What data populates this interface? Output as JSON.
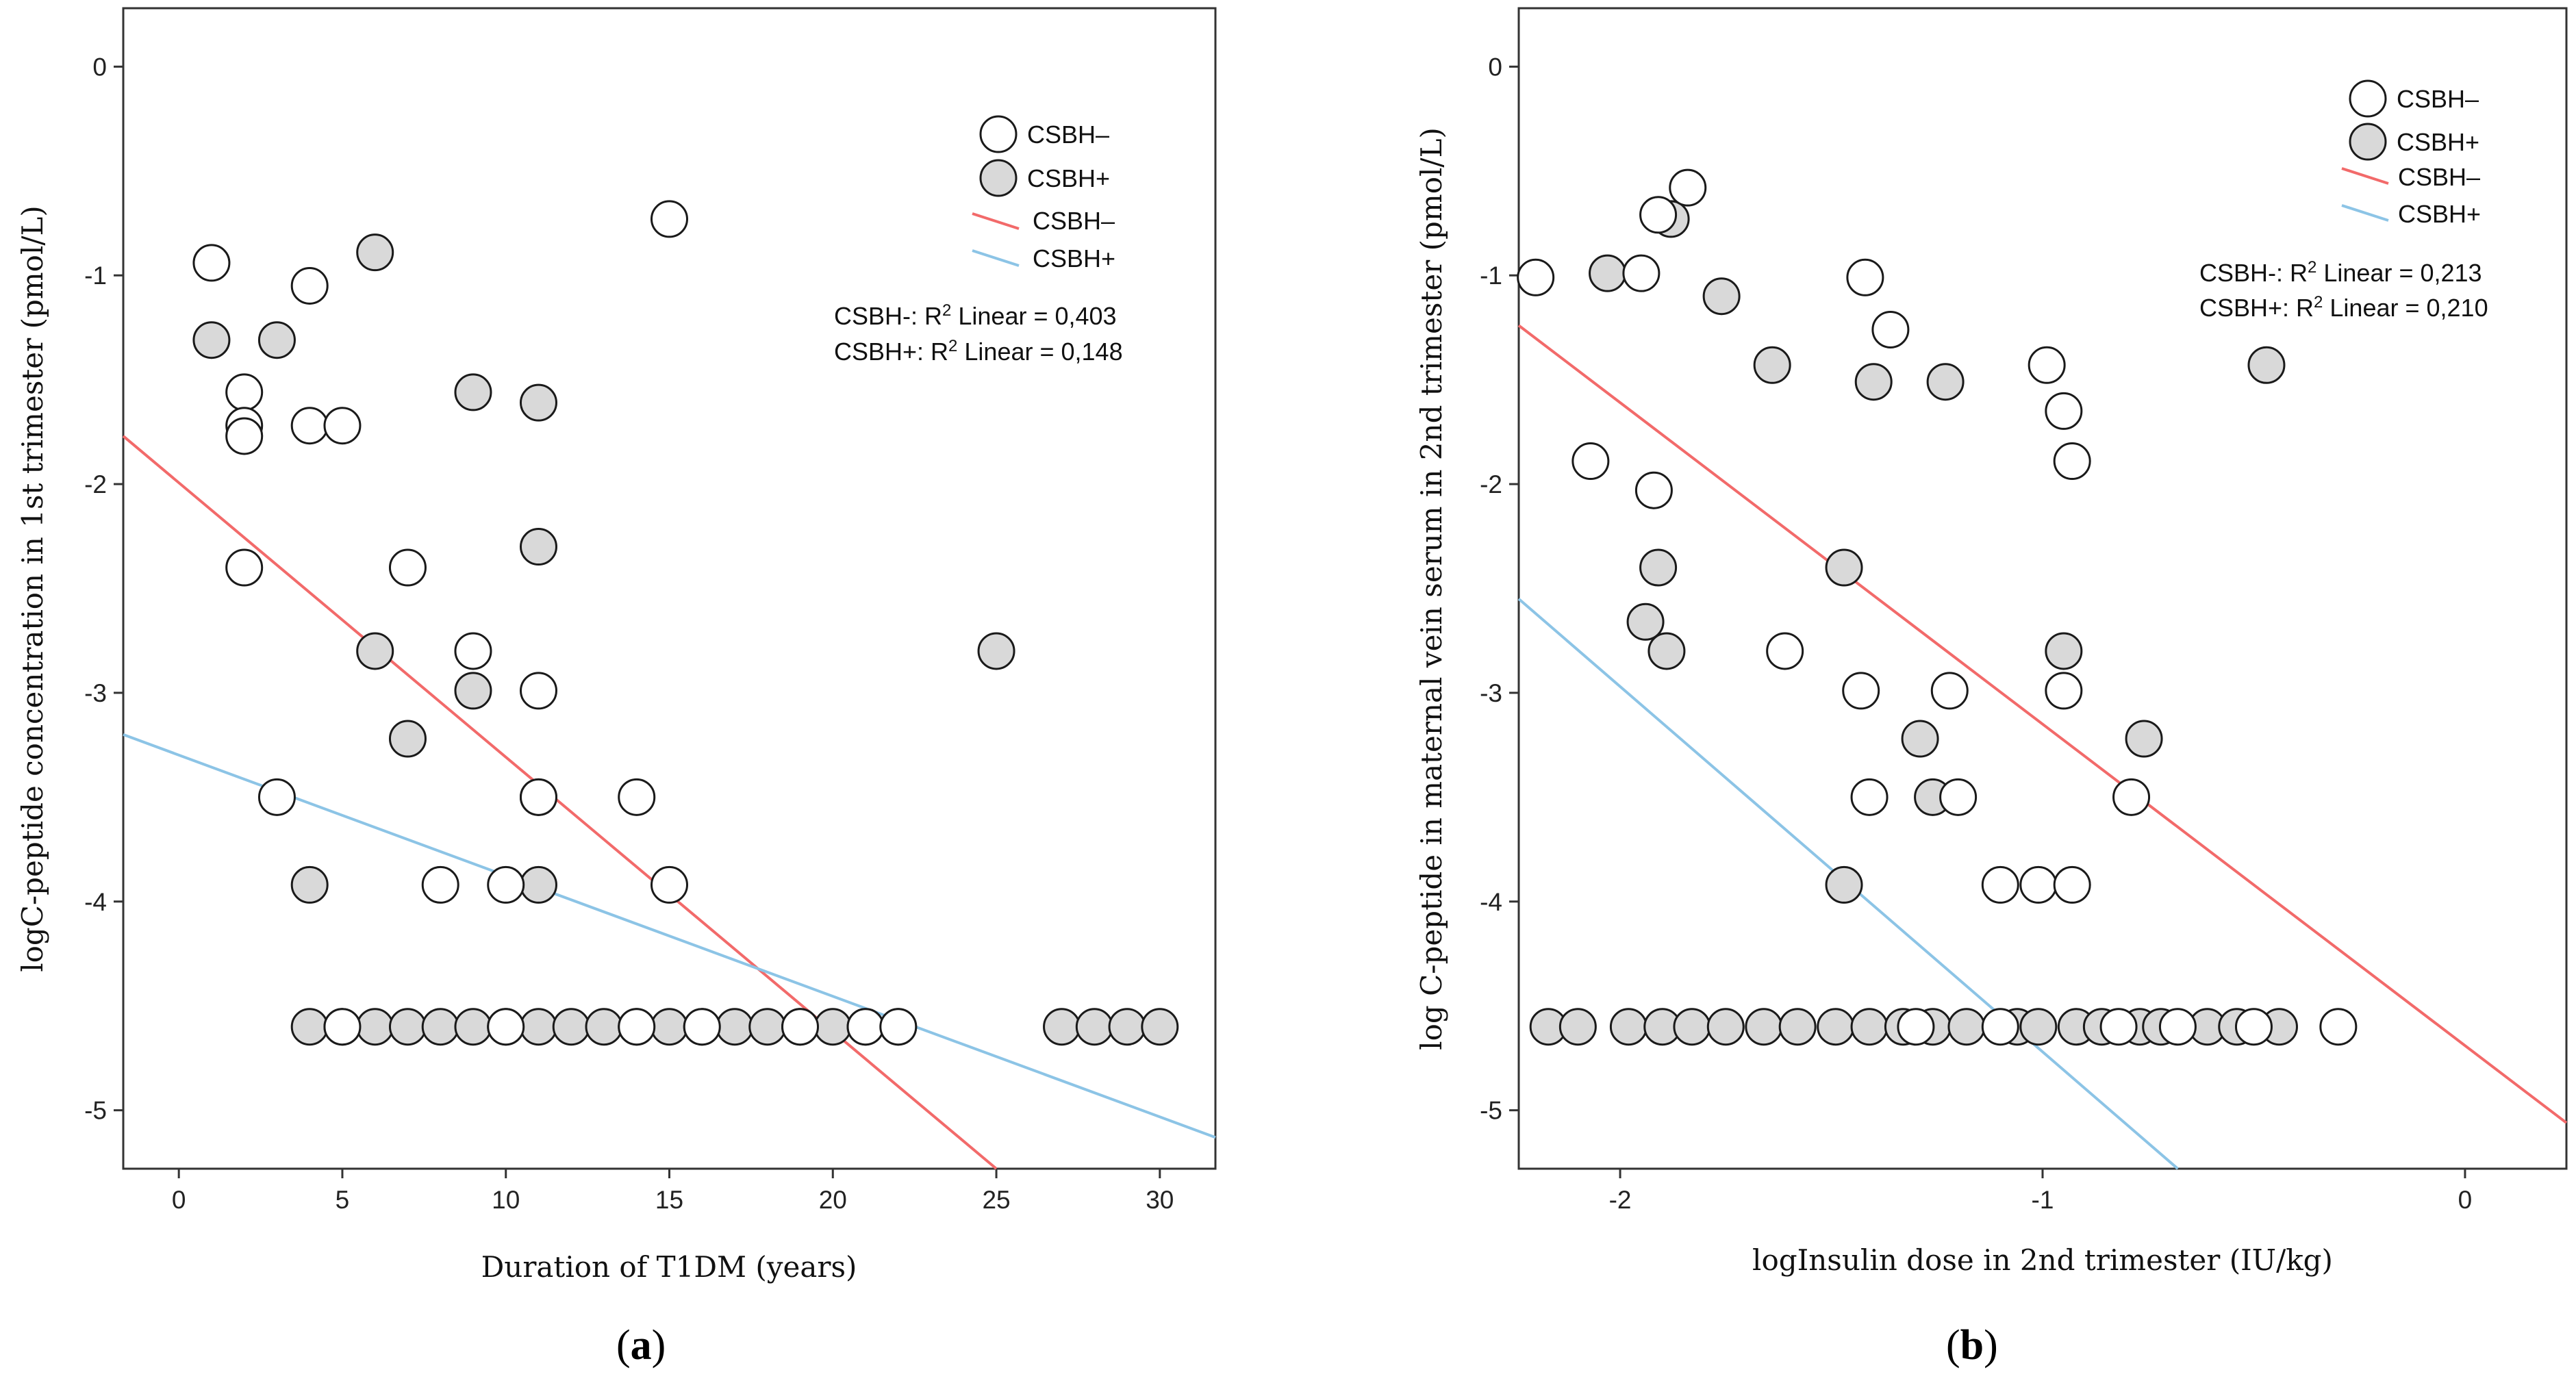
{
  "colors": {
    "neg_line": "#f26a6a",
    "pos_line": "#8cc4e6",
    "neg_fill": "#ffffff",
    "pos_fill": "#d9d9d9",
    "stroke": "#1a1a1a"
  },
  "chart_data": [
    {
      "type": "scatter",
      "panel_label_open": "(",
      "panel_label": "a",
      "panel_label_close": ")",
      "xlabel": "Duration of T1DM (years)",
      "ylabel": "logC-peptide concentration in 1st trimester (pmol/L)",
      "xlim": [
        -1.7,
        31.7
      ],
      "ylim": [
        -5.28,
        0.28
      ],
      "xticks": [
        0,
        5,
        10,
        15,
        20,
        25,
        30
      ],
      "xtick_labels": [
        "0",
        "5",
        "10",
        "15",
        "20",
        "25",
        "30"
      ],
      "yticks": [
        0,
        -1,
        -2,
        -3,
        -4,
        -5
      ],
      "ytick_labels": [
        "0",
        "-1",
        "-2",
        "-3",
        "-4",
        "-5"
      ],
      "legend": {
        "items": [
          {
            "kind": "marker",
            "series": "neg",
            "label": "CSBH–"
          },
          {
            "kind": "marker",
            "series": "pos",
            "label": "CSBH+"
          },
          {
            "kind": "line",
            "series": "neg",
            "label": "CSBH–"
          },
          {
            "kind": "line",
            "series": "pos",
            "label": "CSBH+"
          }
        ],
        "r2_lines": [
          {
            "prefix": "CSBH-: R",
            "sup": "2",
            "suffix": " Linear = 0,403"
          },
          {
            "prefix": "CSBH+: R",
            "sup": "2",
            "suffix": " Linear = 0,148"
          }
        ]
      },
      "fit_lines": [
        {
          "series": "neg",
          "x": [
            -1.7,
            25.0
          ],
          "y": [
            -1.77,
            -5.28
          ]
        },
        {
          "series": "pos",
          "x": [
            -1.7,
            31.7
          ],
          "y": [
            -3.2,
            -5.13
          ]
        }
      ],
      "series": [
        {
          "name": "CSBH–",
          "key": "neg",
          "points": [
            [
              1,
              -0.94
            ],
            [
              4,
              -1.05
            ],
            [
              15,
              -0.73
            ],
            [
              2,
              -1.56
            ],
            [
              2,
              -1.72
            ],
            [
              2,
              -1.77
            ],
            [
              4,
              -1.72
            ],
            [
              5,
              -1.72
            ],
            [
              2,
              -2.4
            ],
            [
              7,
              -2.4
            ],
            [
              11,
              -2.99
            ],
            [
              9,
              -2.8
            ],
            [
              3,
              -3.5
            ],
            [
              11,
              -3.5
            ],
            [
              14,
              -3.5
            ],
            [
              8,
              -3.92
            ],
            [
              10,
              -3.92
            ],
            [
              15,
              -3.92
            ],
            [
              5,
              -4.6
            ],
            [
              10,
              -4.6
            ],
            [
              14,
              -4.6
            ],
            [
              16,
              -4.6
            ],
            [
              19,
              -4.6
            ],
            [
              21,
              -4.6
            ],
            [
              22,
              -4.6
            ]
          ]
        },
        {
          "name": "CSBH+",
          "key": "pos",
          "points": [
            [
              1,
              -1.31
            ],
            [
              3,
              -1.31
            ],
            [
              6,
              -0.89
            ],
            [
              9,
              -1.56
            ],
            [
              11,
              -1.61
            ],
            [
              11,
              -2.3
            ],
            [
              6,
              -2.8
            ],
            [
              9,
              -2.99
            ],
            [
              7,
              -3.22
            ],
            [
              11,
              -3.5
            ],
            [
              4,
              -3.92
            ],
            [
              11,
              -3.92
            ],
            [
              25,
              -2.8
            ],
            [
              4,
              -4.6
            ],
            [
              5,
              -4.6
            ],
            [
              6,
              -4.6
            ],
            [
              7,
              -4.6
            ],
            [
              8,
              -4.6
            ],
            [
              9,
              -4.6
            ],
            [
              10,
              -4.6
            ],
            [
              11,
              -4.6
            ],
            [
              12,
              -4.6
            ],
            [
              13,
              -4.6
            ],
            [
              14,
              -4.6
            ],
            [
              15,
              -4.6
            ],
            [
              16,
              -4.6
            ],
            [
              17,
              -4.6
            ],
            [
              18,
              -4.6
            ],
            [
              19,
              -4.6
            ],
            [
              20,
              -4.6
            ],
            [
              21,
              -4.6
            ],
            [
              22,
              -4.6
            ],
            [
              27,
              -4.6
            ],
            [
              28,
              -4.6
            ],
            [
              29,
              -4.6
            ],
            [
              30,
              -4.6
            ]
          ]
        }
      ]
    },
    {
      "type": "scatter",
      "panel_label_open": "(",
      "panel_label": "b",
      "panel_label_close": ")",
      "xlabel": "logInsulin dose in 2nd trimester (IU/kg)",
      "ylabel": "log C-peptide in maternal vein serum in 2nd trimester (pmol/L)",
      "xlim": [
        -2.24,
        0.24
      ],
      "ylim": [
        -5.28,
        0.28
      ],
      "xticks": [
        -2,
        -1,
        0
      ],
      "xtick_labels": [
        "-2",
        "-1",
        "0"
      ],
      "yticks": [
        0,
        -1,
        -2,
        -3,
        -4,
        -5
      ],
      "ytick_labels": [
        "0",
        "-1",
        "-2",
        "-3",
        "-4",
        "-5"
      ],
      "legend": {
        "items": [
          {
            "kind": "marker",
            "series": "neg",
            "label": "CSBH–"
          },
          {
            "kind": "marker",
            "series": "pos",
            "label": "CSBH+"
          },
          {
            "kind": "line",
            "series": "neg",
            "label": "CSBH–"
          },
          {
            "kind": "line",
            "series": "pos",
            "label": "CSBH+"
          }
        ],
        "r2_lines": [
          {
            "prefix": "CSBH-: R",
            "sup": "2",
            "suffix": " Linear = 0,213"
          },
          {
            "prefix": "CSBH+: R",
            "sup": "2",
            "suffix": " Linear = 0,210"
          }
        ]
      },
      "fit_lines": [
        {
          "series": "neg",
          "x": [
            -2.24,
            0.24
          ],
          "y": [
            -1.24,
            -5.06
          ]
        },
        {
          "series": "pos",
          "x": [
            -2.24,
            -0.68
          ],
          "y": [
            -2.55,
            -5.28
          ]
        }
      ],
      "series": [
        {
          "name": "CSBH–",
          "key": "neg",
          "points": [
            [
              -2.2,
              -1.01
            ],
            [
              -1.95,
              -0.99
            ],
            [
              -1.91,
              -0.71
            ],
            [
              -1.84,
              -0.58
            ],
            [
              -1.42,
              -1.01
            ],
            [
              -1.36,
              -1.26
            ],
            [
              -0.99,
              -1.43
            ],
            [
              -0.95,
              -1.65
            ],
            [
              -0.93,
              -1.89
            ],
            [
              -2.07,
              -1.89
            ],
            [
              -1.92,
              -2.03
            ],
            [
              -1.61,
              -2.8
            ],
            [
              -1.43,
              -2.99
            ],
            [
              -1.22,
              -2.99
            ],
            [
              -0.95,
              -2.99
            ],
            [
              -1.41,
              -3.5
            ],
            [
              -1.2,
              -3.5
            ],
            [
              -0.79,
              -3.5
            ],
            [
              -1.1,
              -3.92
            ],
            [
              -1.01,
              -3.92
            ],
            [
              -0.93,
              -3.92
            ],
            [
              -1.3,
              -4.6
            ],
            [
              -1.1,
              -4.6
            ],
            [
              -0.82,
              -4.6
            ],
            [
              -0.68,
              -4.6
            ],
            [
              -0.5,
              -4.6
            ],
            [
              -0.3,
              -4.6
            ]
          ]
        },
        {
          "name": "CSBH+",
          "key": "pos",
          "points": [
            [
              -2.03,
              -0.99
            ],
            [
              -1.88,
              -0.73
            ],
            [
              -1.64,
              -1.43
            ],
            [
              -1.76,
              -1.1
            ],
            [
              -1.4,
              -1.51
            ],
            [
              -1.23,
              -1.51
            ],
            [
              -0.47,
              -1.43
            ],
            [
              -1.94,
              -2.66
            ],
            [
              -1.91,
              -2.4
            ],
            [
              -1.89,
              -2.8
            ],
            [
              -1.47,
              -2.4
            ],
            [
              -1.29,
              -3.22
            ],
            [
              -0.76,
              -3.22
            ],
            [
              -0.95,
              -2.8
            ],
            [
              -1.26,
              -3.5
            ],
            [
              -1.47,
              -3.92
            ],
            [
              -2.17,
              -4.6
            ],
            [
              -2.1,
              -4.6
            ],
            [
              -1.98,
              -4.6
            ],
            [
              -1.9,
              -4.6
            ],
            [
              -1.83,
              -4.6
            ],
            [
              -1.75,
              -4.6
            ],
            [
              -1.66,
              -4.6
            ],
            [
              -1.58,
              -4.6
            ],
            [
              -1.49,
              -4.6
            ],
            [
              -1.41,
              -4.6
            ],
            [
              -1.33,
              -4.6
            ],
            [
              -1.26,
              -4.6
            ],
            [
              -1.18,
              -4.6
            ],
            [
              -1.06,
              -4.6
            ],
            [
              -1.01,
              -4.6
            ],
            [
              -0.92,
              -4.6
            ],
            [
              -0.86,
              -4.6
            ],
            [
              -0.77,
              -4.6
            ],
            [
              -0.72,
              -4.6
            ],
            [
              -0.61,
              -4.6
            ],
            [
              -0.54,
              -4.6
            ],
            [
              -0.44,
              -4.6
            ]
          ]
        }
      ]
    }
  ]
}
